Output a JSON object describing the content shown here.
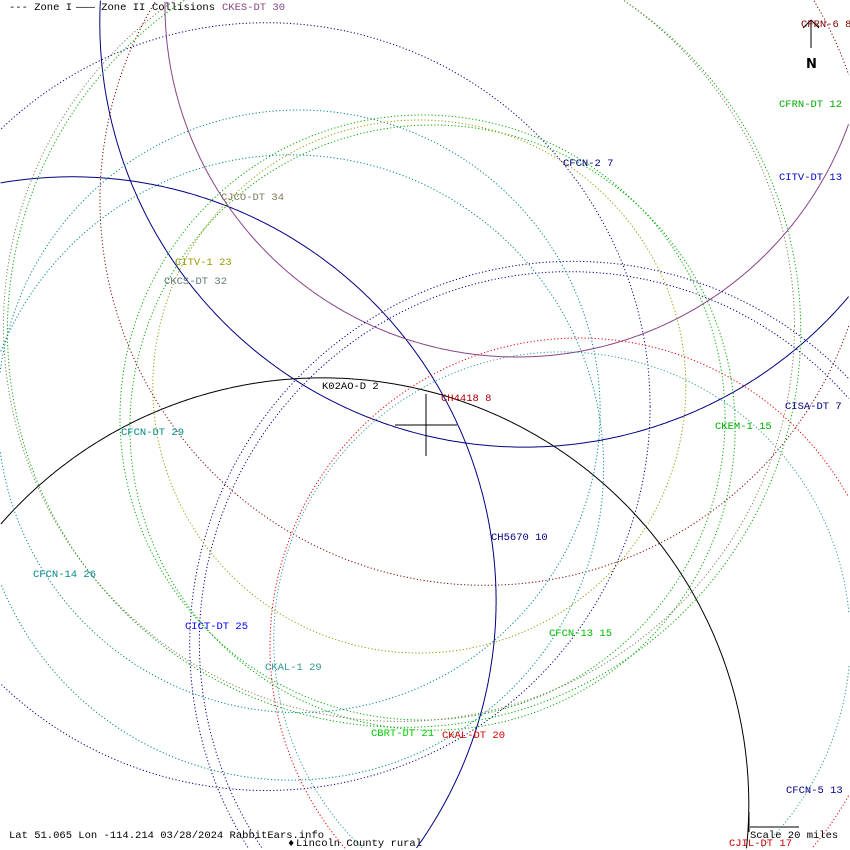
{
  "legend": {
    "zone1": "--- Zone I",
    "zone2": "——— Zone II",
    "collisions": "Collisions"
  },
  "north_label": "N",
  "stations": [
    {
      "label": "CKES-DT 30",
      "color": "#884488"
    },
    {
      "label": "CFRN-6 8",
      "color": "#800000"
    },
    {
      "label": "CFRN-DT 12",
      "color": "#00aa00"
    },
    {
      "label": "CITV-DT 13",
      "color": "#0000cc"
    },
    {
      "label": "CFCN-2 7",
      "color": "#000080"
    },
    {
      "label": "CJCO-DT 34",
      "color": "#807a5a"
    },
    {
      "label": "CITV-1 23",
      "color": "#999900"
    },
    {
      "label": "CKCS-DT 32",
      "color": "#607878"
    },
    {
      "label": "K02AO-D 2",
      "color": "#000000"
    },
    {
      "label": "CH4418 8",
      "color": "#aa0000"
    },
    {
      "label": "CISA-DT 7",
      "color": "#000080"
    },
    {
      "label": "CKEM-1 15",
      "color": "#00aa00"
    },
    {
      "label": "CFCN-DT 29",
      "color": "#008888"
    },
    {
      "label": "CH5670 10",
      "color": "#000080"
    },
    {
      "label": "CFCN-14 26",
      "color": "#008888"
    },
    {
      "label": "CICT-DT 25",
      "color": "#0000ff"
    },
    {
      "label": "CFCN-13 15",
      "color": "#00bb00"
    },
    {
      "label": "CKAL-1 29",
      "color": "#339999"
    },
    {
      "label": "CKAL-DT 20",
      "color": "#dd0000"
    },
    {
      "label": "CBRT-DT 21",
      "color": "#00cc00"
    },
    {
      "label": "CFCN-5 13",
      "color": "#000080"
    },
    {
      "label": "CJIL-DT 17",
      "color": "#cc0000"
    }
  ],
  "footer": {
    "coords": "Lat 51.065 Lon -114.214 03/28/2024 RabbitEars.info",
    "location_marker": "♦",
    "location": "Lincoln County rural",
    "scale": "Scale 20 miles"
  }
}
